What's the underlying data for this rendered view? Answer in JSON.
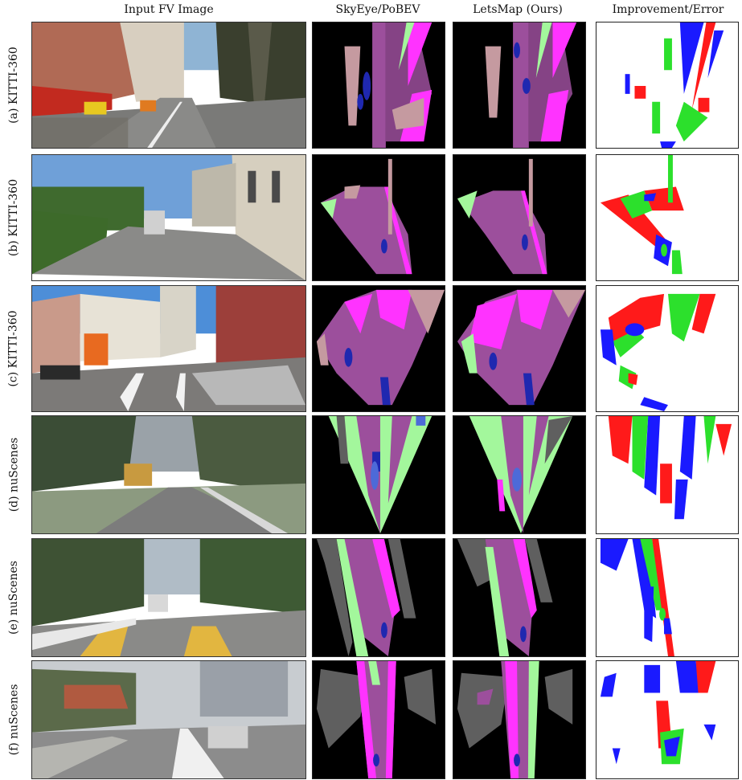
{
  "columns": [
    "Input FV Image",
    "SkyEye/PoBEV",
    "LetsMap (Ours)",
    "Improvement/Error"
  ],
  "rows": [
    {
      "label": "(a) KITTI-360"
    },
    {
      "label": "(b) KITTI-360"
    },
    {
      "label": "(c) KITTI-360"
    },
    {
      "label": "(d) nuScenes"
    },
    {
      "label": "(e) nuScenes"
    },
    {
      "label": "(f) nuScenes"
    }
  ],
  "palette": {
    "road": "#9c4f9c",
    "sidewalk": "#ff33ff",
    "vegetation": "#a3f79c",
    "terrain": "#c59aa0",
    "vehicle": "#1f28b0",
    "other": "#5f5f5f",
    "improve_green": "#2ce02c",
    "error_red": "#ff1a1a",
    "error_blue": "#1a1aff"
  }
}
